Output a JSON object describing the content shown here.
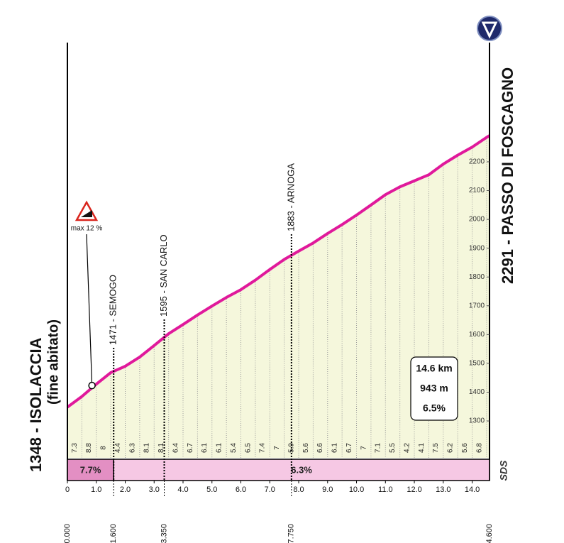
{
  "chart_data": {
    "type": "area",
    "x": [
      0,
      0.5,
      1.0,
      1.5,
      2.0,
      2.5,
      3.0,
      3.5,
      4.0,
      4.5,
      5.0,
      5.5,
      6.0,
      6.5,
      7.0,
      7.5,
      8.0,
      8.5,
      9.0,
      9.5,
      10.0,
      10.5,
      11.0,
      11.5,
      12.0,
      12.5,
      13.0,
      13.5,
      14.0,
      14.5,
      14.6
    ],
    "values": [
      1348,
      1385,
      1428,
      1468,
      1490,
      1522,
      1562,
      1603,
      1635,
      1668,
      1699,
      1729,
      1756,
      1789,
      1826,
      1861,
      1890,
      1918,
      1951,
      1982,
      2015,
      2050,
      2086,
      2113,
      2134,
      2155,
      2192,
      2223,
      2251,
      2285,
      2291
    ],
    "color": "#e0199b",
    "fill": "#f5f7dc",
    "xlim": [
      0,
      14.6
    ],
    "ylim": [
      1172,
      2614
    ],
    "yticks": [
      1300,
      1400,
      1500,
      1600,
      1700,
      1800,
      1900,
      2000,
      2100,
      2200
    ],
    "xticks": [
      0,
      {
        "value": 1,
        "label": "1.0"
      },
      {
        "value": 2,
        "label": "2.0"
      },
      {
        "value": 3,
        "label": "3.0"
      },
      {
        "value": 4,
        "label": "4.0"
      },
      {
        "value": 5,
        "label": "5.0"
      },
      {
        "value": 6,
        "label": "6.0"
      },
      {
        "value": 7,
        "label": "7.0"
      },
      {
        "value": 8,
        "label": "8.0"
      },
      {
        "value": 9,
        "label": "9.0"
      },
      {
        "value": 10,
        "label": "10.0"
      },
      {
        "value": 11,
        "label": "11.0"
      },
      {
        "value": 12,
        "label": "12.0"
      },
      {
        "value": 13,
        "label": "13.0"
      },
      {
        "value": 14,
        "label": "14.0"
      }
    ],
    "gradients": [
      7.3,
      8.8,
      8.0,
      4.4,
      6.3,
      8.1,
      8.1,
      6.4,
      6.7,
      6.1,
      6.1,
      5.4,
      6.5,
      7.4,
      7.0,
      5.9,
      5.6,
      6.6,
      6.1,
      6.7,
      7.0,
      7.1,
      5.5,
      4.2,
      4.1,
      7.5,
      6.2,
      5.6,
      6.8
    ],
    "start": {
      "x": 0,
      "x_label": "0.000",
      "label": "1348 - ISOLACCIA",
      "sublabel": "(fine abitato)"
    },
    "finish": {
      "x": 14.6,
      "x_label": "14.600",
      "label": "2291 - PASSO DI FOSCAGNO"
    },
    "waypoints": [
      {
        "x": 1.6,
        "x_label": "1.600",
        "label": "1471 - SEMOGO"
      },
      {
        "x": 3.35,
        "x_label": "3.350",
        "label": "1595 - SAN CARLO"
      },
      {
        "x": 7.75,
        "x_label": "7.750",
        "label": "1883 - ARNOGA"
      }
    ],
    "sectors": [
      {
        "start": 0,
        "end": 1.6,
        "value": 7.7,
        "value_label": "7.7%",
        "color": "#e38fc3"
      },
      {
        "start": 1.6,
        "end": 14.6,
        "value": 6.3,
        "value_label": "6.3%",
        "color": "#f6c8e4"
      }
    ],
    "max_gradient": {
      "label": "max 12 %",
      "x": 0.85,
      "elevation": 1423
    },
    "summary": [
      "14.6 km",
      "943 m",
      "6.5%"
    ],
    "logo": "SDS"
  }
}
